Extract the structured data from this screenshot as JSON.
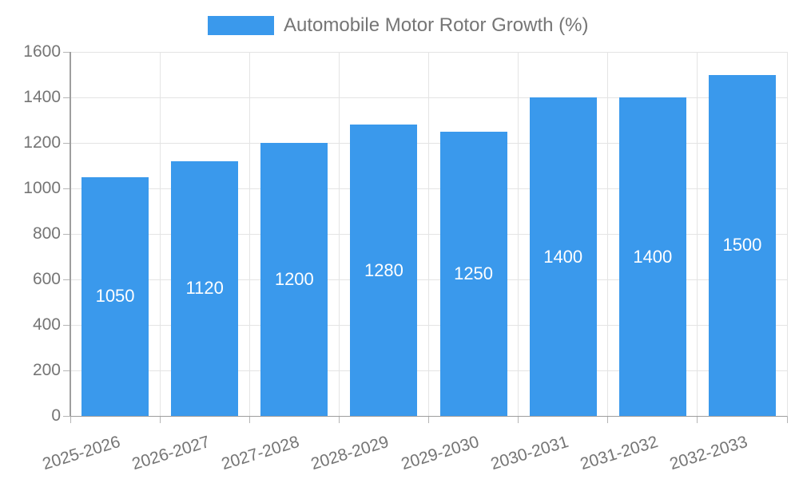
{
  "legend": {
    "label": "Automobile Motor Rotor Growth (%)"
  },
  "colors": {
    "bar": "#3a99ec",
    "bar_value_text": "#ffffff",
    "legend_text": "#757575",
    "axis_label_text": "#757575",
    "gridline": "#e4e4e4",
    "axis_line": "#9e9e9e",
    "tick": "#b5b5b5",
    "background": "#ffffff"
  },
  "chart_data": {
    "type": "bar",
    "title": "Automobile Motor Rotor Growth (%)",
    "categories": [
      "2025-2026",
      "2026-2027",
      "2027-2028",
      "2028-2029",
      "2029-2030",
      "2030-2031",
      "2031-2032",
      "2032-2033"
    ],
    "values": [
      1050,
      1120,
      1200,
      1280,
      1250,
      1400,
      1400,
      1500
    ],
    "bar_value_labels": [
      "1050",
      "1120",
      "1200",
      "1280",
      "1250",
      "1400",
      "1400",
      "1500"
    ],
    "xlabel": "",
    "ylabel": "",
    "ylim": [
      0,
      1600
    ],
    "ytick_step": 200,
    "ytick_labels": [
      "0",
      "200",
      "400",
      "600",
      "800",
      "1000",
      "1200",
      "1400",
      "1600"
    ],
    "grid": true,
    "legend_position": "top"
  }
}
